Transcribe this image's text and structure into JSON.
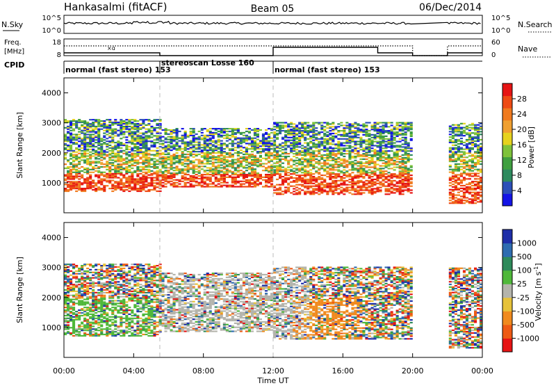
{
  "header": {
    "title": "Hankasalmi (fitACF)",
    "beam": "Beam 05",
    "date": "06/Dec/2014"
  },
  "noise_panel": {
    "left_label": "N.Sky",
    "right_label": "N.Search",
    "left_ticks": [
      "10^5",
      "10^0"
    ],
    "right_ticks": [
      "10^5",
      "10^0"
    ]
  },
  "freq_panel": {
    "left_label_line1": "Freq.",
    "left_label_line2": "[MHz]",
    "left_ticks": [
      "18",
      "8"
    ],
    "right_label": "Nave",
    "right_ticks": [
      "60",
      "0"
    ]
  },
  "cpid": {
    "label": "CPID",
    "segments": [
      {
        "text": "normal (fast stereo) 153",
        "start_hour": 0.0,
        "end_hour": 5.5
      },
      {
        "text": "stereoscan Losse 160",
        "start_hour": 5.5,
        "end_hour": 12.0
      },
      {
        "text": "normal (fast stereo) 153",
        "start_hour": 12.0,
        "end_hour": 24.0
      }
    ]
  },
  "power_panel": {
    "ylabel": "Slant Range [km]",
    "yticks": [
      "4000",
      "3000",
      "2000",
      "1000"
    ],
    "colorbar_label": "Power [dB]",
    "colorbar_ticks": [
      "28",
      "24",
      "20",
      "16",
      "12",
      "8",
      "4"
    ],
    "colors": [
      "#1414e6",
      "#2c4fb8",
      "#2d8a5e",
      "#3f9f3f",
      "#7ec23a",
      "#e6d21e",
      "#f0a030",
      "#f07a1e",
      "#ee4a14",
      "#e61414"
    ]
  },
  "velocity_panel": {
    "ylabel": "Slant Range [km]",
    "yticks": [
      "4000",
      "3000",
      "2000",
      "1000"
    ],
    "colorbar_label": "Velocity [m s^-1]",
    "colorbar_ticks": [
      "1000",
      "500",
      "100",
      "25",
      "-25",
      "-100",
      "-500",
      "-1000"
    ],
    "colors": [
      "#1e2ea8",
      "#2e6cb0",
      "#2e8a5a",
      "#4fb83a",
      "#b4b4ac",
      "#e6c23a",
      "#f08a1e",
      "#ee5a14",
      "#e61414"
    ]
  },
  "time_axis": {
    "xlabel": "Time UT",
    "ticks": [
      "00:00",
      "04:00",
      "08:00",
      "12:00",
      "16:00",
      "20:00",
      "00:00"
    ]
  },
  "chart_data": {
    "type": "heatmap",
    "title": "Hankasalmi (fitACF)",
    "subtitle": "Beam 05",
    "date": "06/Dec/2014",
    "x_range_hours": [
      0,
      24
    ],
    "y_range_km": [
      0,
      4500
    ],
    "xlabel": "Time UT",
    "ylabel": "Slant Range [km]",
    "data_gap_hours": [
      20.0,
      22.0
    ],
    "mode_change_hours": [
      5.5,
      12.0
    ],
    "power_scale_db": [
      0,
      30
    ],
    "velocity_scale_ms": [
      -1000,
      1000
    ]
  }
}
